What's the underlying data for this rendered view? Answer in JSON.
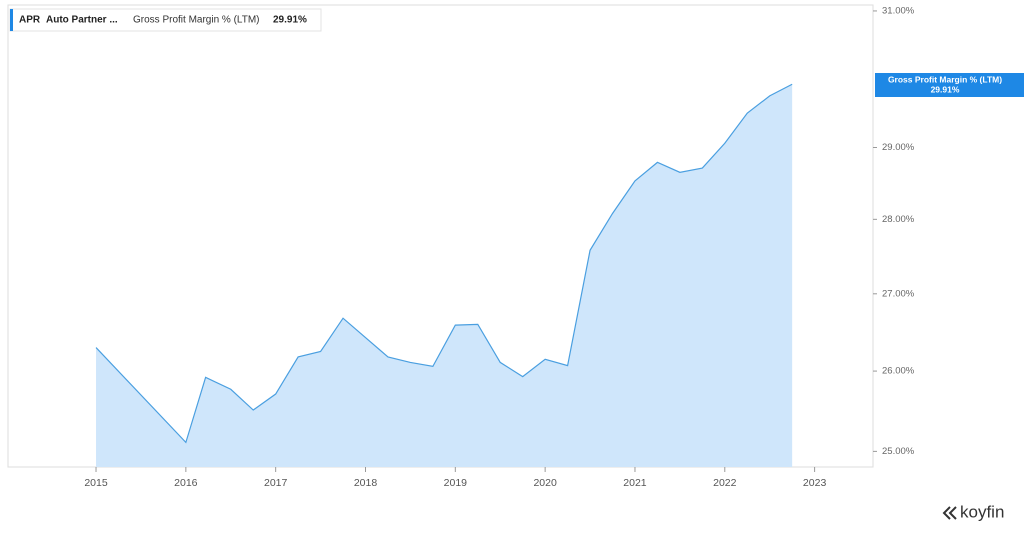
{
  "chart_data": {
    "type": "area",
    "ticker": "APR",
    "company": "Auto Partner ...",
    "series_label": "Gross Profit Margin % (LTM)",
    "last_value_label": "29.91%",
    "brand": "koyfin",
    "x": [
      2015.0,
      2016.0,
      2016.22,
      2016.5,
      2016.75,
      2017.0,
      2017.25,
      2017.5,
      2017.75,
      2018.25,
      2018.5,
      2018.75,
      2019.0,
      2019.25,
      2019.5,
      2019.75,
      2020.0,
      2020.25,
      2020.5,
      2020.75,
      2021.0,
      2021.25,
      2021.5,
      2021.75,
      2022.0,
      2022.25,
      2022.5,
      2022.75
    ],
    "values": [
      26.3,
      25.11,
      25.92,
      25.77,
      25.51,
      25.71,
      26.18,
      26.25,
      26.68,
      26.18,
      26.11,
      26.06,
      26.59,
      26.6,
      26.11,
      25.93,
      26.15,
      26.07,
      27.58,
      28.08,
      28.53,
      28.79,
      28.65,
      28.71,
      29.06,
      29.49,
      29.74,
      29.91
    ],
    "color": "#4a9fe0",
    "fill": "#cfe6fb",
    "xlim": [
      2014.02,
      2023.65
    ],
    "xticks": [
      2015,
      2016,
      2017,
      2018,
      2019,
      2020,
      2021,
      2022,
      2023
    ],
    "ylim": [
      24.81,
      31.09
    ],
    "log_scale": true,
    "yticks": [
      {
        "value": 25,
        "label": "25.00%"
      },
      {
        "value": 26,
        "label": "26.00%"
      },
      {
        "value": 27,
        "label": "27.00%"
      },
      {
        "value": 28,
        "label": "28.00%"
      },
      {
        "value": 29,
        "label": "29.00%"
      },
      {
        "value": 31,
        "label": "31.00%"
      }
    ]
  }
}
